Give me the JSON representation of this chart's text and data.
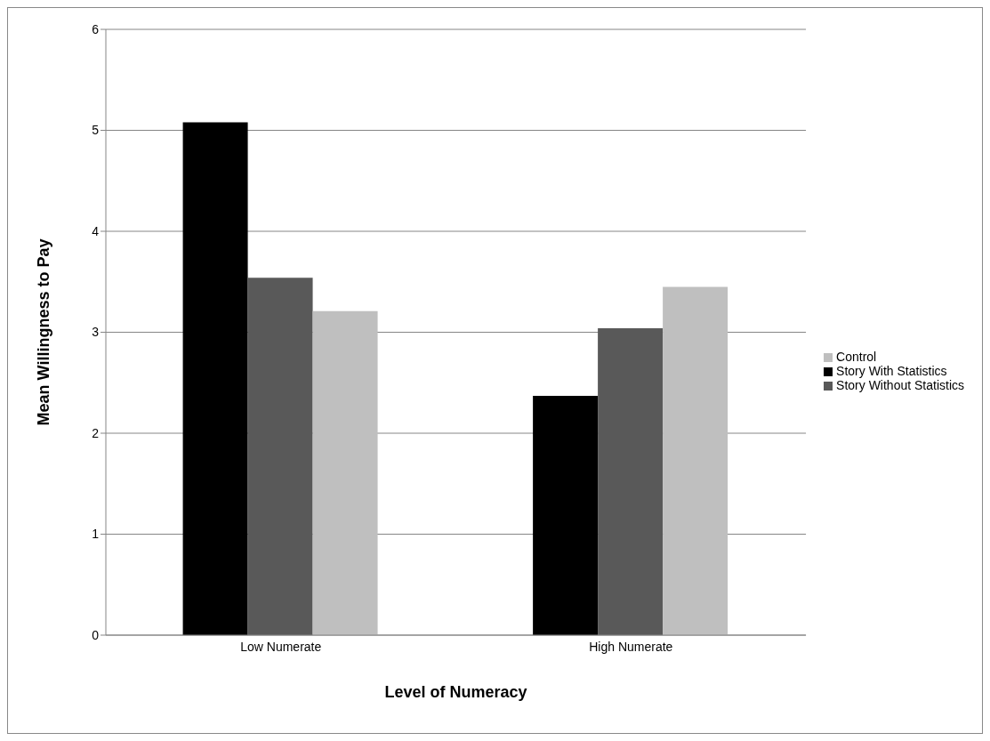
{
  "chart_data": {
    "type": "bar",
    "xlabel": "Level of Numeracy",
    "ylabel": "Mean Willingness to Pay",
    "categories": [
      "Low Numerate",
      "High Numerate"
    ],
    "series": [
      {
        "name": "Story With Statistics",
        "color": "#000000",
        "values": [
          5.08,
          2.37
        ]
      },
      {
        "name": "Story Without Statistics",
        "color": "#595959",
        "values": [
          3.54,
          3.04
        ]
      },
      {
        "name": "Control",
        "color": "#bfbfbf",
        "values": [
          3.21,
          3.45
        ]
      }
    ],
    "ylim": [
      0,
      6
    ],
    "yticks": [
      0,
      1,
      2,
      3,
      4,
      5,
      6
    ],
    "grid": "y",
    "legend": "right"
  }
}
